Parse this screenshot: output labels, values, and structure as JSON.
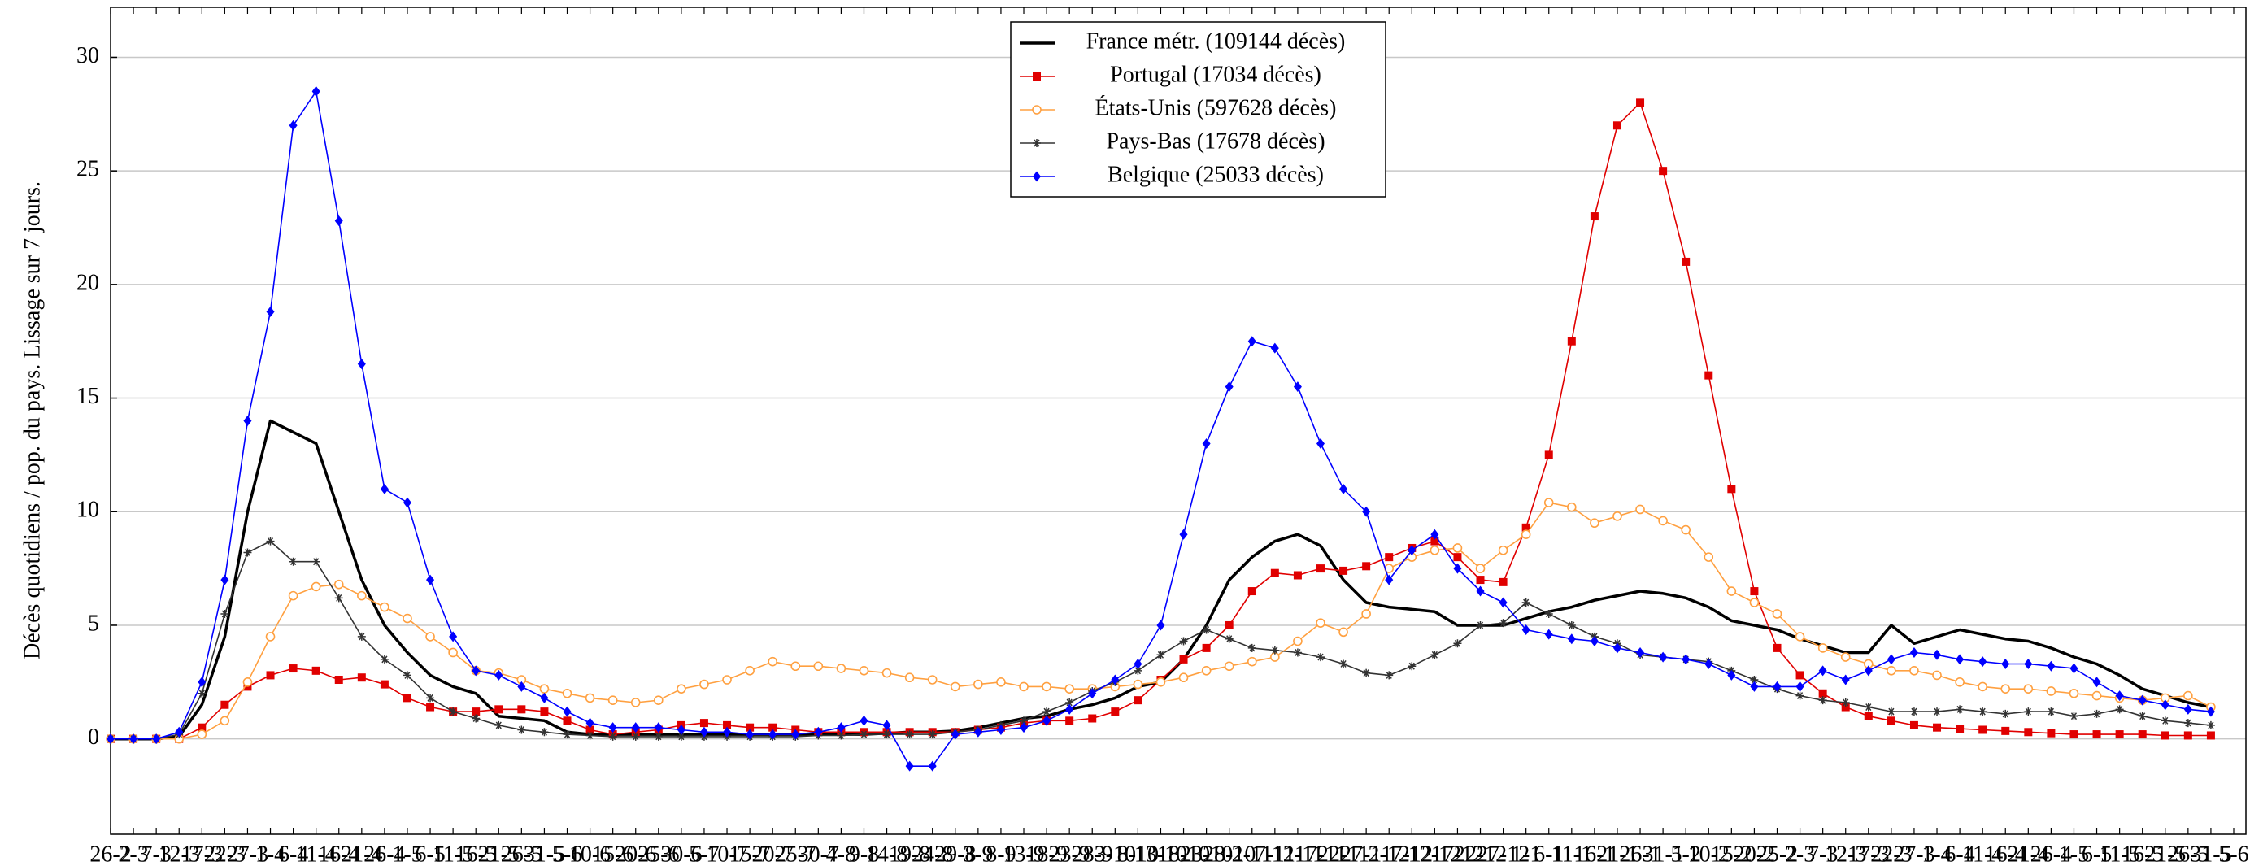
{
  "chart_data": {
    "type": "line",
    "y_label": "Décès quotidiens / pop. du pays. Lissage sur 7 jours.",
    "categories": [
      "26-2",
      "2-3",
      "7-3",
      "12-3",
      "17-3",
      "22-3",
      "27-3",
      "1-4",
      "6-4",
      "11-4",
      "16-4",
      "21-4",
      "26-4",
      "1-5",
      "6-5",
      "11-5",
      "16-5",
      "21-5",
      "26-5",
      "31-5",
      "5-6",
      "10-6",
      "15-6",
      "20-6",
      "25-6",
      "30-6",
      "5-7",
      "10-7",
      "15-7",
      "20-7",
      "25-7",
      "30-7",
      "4-8",
      "9-8",
      "14-8",
      "19-8",
      "24-8",
      "29-8",
      "3-9",
      "8-9",
      "13-9",
      "18-9",
      "23-9",
      "28-9",
      "3-10",
      "8-10",
      "13-10",
      "18-10",
      "23-10",
      "28-10",
      "2-11",
      "7-11",
      "12-11",
      "17-11",
      "22-11",
      "27-11",
      "2-12",
      "7-12",
      "12-12",
      "17-12",
      "22-12",
      "27-12",
      "1-1",
      "6-1",
      "11-1",
      "16-1",
      "21-1",
      "26-1",
      "31-1",
      "5-2",
      "10-2",
      "15-2",
      "20-2",
      "25-2",
      "2-3",
      "7-3",
      "12-3",
      "17-3",
      "22-3",
      "27-3",
      "1-4",
      "6-4",
      "11-4",
      "16-4",
      "21-4",
      "26-4",
      "1-5",
      "6-5",
      "11-5",
      "16-5",
      "21-5",
      "26-5",
      "31-5",
      "5-6"
    ],
    "series": [
      {
        "name": "France métr. (109144 décès)",
        "color": "#000000",
        "marker": "none",
        "values": [
          0,
          0,
          0,
          0.1,
          1.5,
          4.5,
          10,
          14,
          13.5,
          13,
          10,
          7,
          5,
          3.8,
          2.8,
          2.3,
          2,
          1,
          0.9,
          0.8,
          0.3,
          0.2,
          0.2,
          0.2,
          0.2,
          0.2,
          0.2,
          0.2,
          0.2,
          0.2,
          0.2,
          0.2,
          0.2,
          0.2,
          0.25,
          0.3,
          0.3,
          0.35,
          0.5,
          0.7,
          0.9,
          1,
          1.3,
          1.5,
          1.8,
          2.3,
          2.5,
          3.5,
          5,
          7,
          8,
          8.7,
          9,
          8.5,
          7,
          6,
          5.8,
          5.7,
          5.6,
          5,
          5,
          5,
          5.3,
          5.6,
          5.8,
          6.1,
          6.3,
          6.5,
          6.4,
          6.2,
          5.8,
          5.2,
          5,
          4.8,
          4.4,
          4.1,
          3.8,
          3.8,
          5,
          4.2,
          4.5,
          4.8,
          4.6,
          4.4,
          4.3,
          4,
          3.6,
          3.3,
          2.8,
          2.2,
          1.9,
          1.6,
          1.4,
          null
        ]
      },
      {
        "name": "Portugal (17034 décès)",
        "color": "#e00000",
        "marker": "square",
        "values": [
          0,
          0,
          0,
          0,
          0.5,
          1.5,
          2.3,
          2.8,
          3.1,
          3,
          2.6,
          2.7,
          2.4,
          1.8,
          1.4,
          1.2,
          1.2,
          1.3,
          1.3,
          1.2,
          0.8,
          0.4,
          0.2,
          0.3,
          0.4,
          0.6,
          0.7,
          0.6,
          0.5,
          0.5,
          0.4,
          0.3,
          0.3,
          0.3,
          0.3,
          0.3,
          0.3,
          0.3,
          0.4,
          0.5,
          0.7,
          0.8,
          0.8,
          0.9,
          1.2,
          1.7,
          2.6,
          3.5,
          4,
          5,
          6.5,
          7.3,
          7.2,
          7.5,
          7.4,
          7.6,
          8,
          8.4,
          8.7,
          8,
          7,
          6.9,
          9.3,
          12.5,
          17.5,
          23,
          27,
          28,
          25,
          21,
          16,
          11,
          6.5,
          4,
          2.8,
          2,
          1.4,
          1,
          0.8,
          0.6,
          0.5,
          0.45,
          0.4,
          0.35,
          0.3,
          0.25,
          0.2,
          0.2,
          0.2,
          0.2,
          0.15,
          0.15,
          0.15,
          null
        ]
      },
      {
        "name": "États-Unis (597628 décès)",
        "color": "#ffa040",
        "marker": "circle",
        "values": [
          0,
          0,
          0,
          0,
          0.2,
          0.8,
          2.5,
          4.5,
          6.3,
          6.7,
          6.8,
          6.3,
          5.8,
          5.3,
          4.5,
          3.8,
          3,
          2.9,
          2.6,
          2.2,
          2,
          1.8,
          1.7,
          1.6,
          1.7,
          2.2,
          2.4,
          2.6,
          3,
          3.4,
          3.2,
          3.2,
          3.1,
          3,
          2.9,
          2.7,
          2.6,
          2.3,
          2.4,
          2.5,
          2.3,
          2.3,
          2.2,
          2.2,
          2.3,
          2.4,
          2.5,
          2.7,
          3,
          3.2,
          3.4,
          3.6,
          4.3,
          5.1,
          4.7,
          5.5,
          7.5,
          8,
          8.3,
          8.4,
          7.5,
          8.3,
          9,
          10.4,
          10.2,
          9.5,
          9.8,
          10.1,
          9.6,
          9.2,
          8,
          6.5,
          6,
          5.5,
          4.5,
          4,
          3.6,
          3.3,
          3,
          3,
          2.8,
          2.5,
          2.3,
          2.2,
          2.2,
          2.1,
          2,
          1.9,
          1.8,
          1.7,
          1.8,
          1.9,
          1.4,
          null
        ]
      },
      {
        "name": "Pays-Bas (17678 décès)",
        "color": "#333333",
        "marker": "star",
        "values": [
          0,
          0,
          0,
          0.2,
          2,
          5.5,
          8.2,
          8.7,
          7.8,
          7.8,
          6.2,
          4.5,
          3.5,
          2.8,
          1.8,
          1.2,
          0.9,
          0.6,
          0.4,
          0.3,
          0.2,
          0.15,
          0.1,
          0.1,
          0.1,
          0.1,
          0.1,
          0.1,
          0.1,
          0.1,
          0.1,
          0.15,
          0.15,
          0.2,
          0.2,
          0.2,
          0.2,
          0.3,
          0.4,
          0.6,
          0.8,
          1.2,
          1.6,
          2.1,
          2.5,
          3,
          3.7,
          4.3,
          4.8,
          4.4,
          4,
          3.9,
          3.8,
          3.6,
          3.3,
          2.9,
          2.8,
          3.2,
          3.7,
          4.2,
          5,
          5.1,
          6,
          5.5,
          5,
          4.5,
          4.2,
          3.7,
          3.6,
          3.5,
          3.4,
          3,
          2.6,
          2.2,
          1.9,
          1.7,
          1.6,
          1.4,
          1.2,
          1.2,
          1.2,
          1.3,
          1.2,
          1.1,
          1.2,
          1.2,
          1,
          1.1,
          1.3,
          1,
          0.8,
          0.7,
          0.6,
          null
        ]
      },
      {
        "name": "Belgique (25033 décès)",
        "color": "#0000ff",
        "marker": "diamond",
        "values": [
          0,
          0,
          0,
          0.3,
          2.5,
          7,
          14,
          18.8,
          27,
          28.5,
          22.8,
          16.5,
          11,
          10.4,
          7,
          4.5,
          3,
          2.8,
          2.3,
          1.8,
          1.2,
          0.7,
          0.5,
          0.5,
          0.5,
          0.4,
          0.3,
          0.3,
          0.2,
          0.2,
          0.2,
          0.3,
          0.5,
          0.8,
          0.6,
          -1.2,
          -1.2,
          0.2,
          0.3,
          0.4,
          0.5,
          0.8,
          1.3,
          2,
          2.6,
          3.3,
          5,
          9,
          13,
          15.5,
          17.5,
          17.2,
          15.5,
          13,
          11,
          10,
          7,
          8.3,
          9,
          7.5,
          6.5,
          6,
          4.8,
          4.6,
          4.4,
          4.3,
          4,
          3.8,
          3.6,
          3.5,
          3.3,
          2.8,
          2.3,
          2.3,
          2.3,
          3,
          2.6,
          3,
          3.5,
          3.8,
          3.7,
          3.5,
          3.4,
          3.3,
          3.3,
          3.2,
          3.1,
          2.5,
          1.9,
          1.7,
          1.5,
          1.3,
          1.2,
          null
        ]
      }
    ],
    "ylim": [
      -4.2,
      32.2
    ],
    "yticks": [
      0,
      5,
      10,
      15,
      20,
      25,
      30
    ],
    "grid": true,
    "legend": "upper center"
  }
}
